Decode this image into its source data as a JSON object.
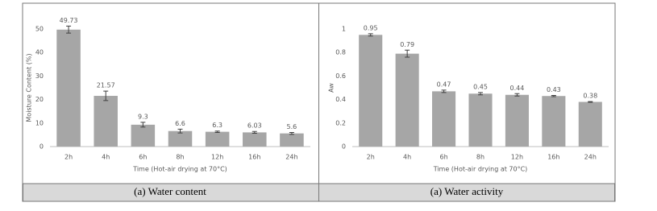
{
  "chart_data": [
    {
      "type": "bar",
      "y_label": "Moisture Content (%)",
      "x_label": "Time (Hot-air drying at 70°C)",
      "caption": "(a)  Water content",
      "categories": [
        "2h",
        "4h",
        "6h",
        "8h",
        "12h",
        "16h",
        "24h"
      ],
      "values": [
        49.73,
        21.57,
        9.3,
        6.6,
        6.3,
        6.03,
        5.6
      ],
      "errors": [
        1.5,
        2,
        1,
        0.8,
        0.3,
        0.4,
        0.4
      ],
      "color": "#a6a6a6",
      "ylim": [
        0,
        50
      ],
      "yticks": [
        0,
        10,
        20,
        30,
        40,
        50
      ]
    },
    {
      "type": "bar",
      "y_label": "Aw",
      "x_label": "Time (Hot-air drying at 70°C)",
      "caption": "(a)  Water activity",
      "categories": [
        "2h",
        "4h",
        "6h",
        "8h",
        "12h",
        "16h",
        "24h"
      ],
      "values": [
        0.95,
        0.79,
        0.47,
        0.45,
        0.44,
        0.43,
        0.38
      ],
      "errors": [
        0.01,
        0.03,
        0.01,
        0.01,
        0.01,
        0.005,
        0.003
      ],
      "color": "#a6a6a6",
      "ylim": [
        0,
        1
      ],
      "yticks": [
        0,
        0.2,
        0.4,
        0.6,
        0.8,
        1
      ]
    }
  ]
}
